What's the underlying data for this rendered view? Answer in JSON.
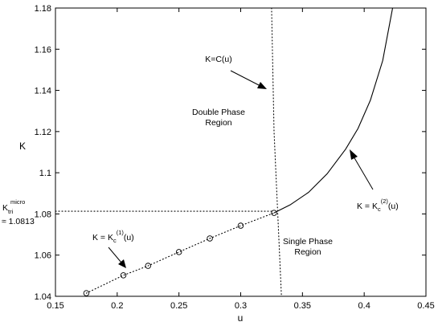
{
  "chart_data": {
    "type": "scatter",
    "xlabel": "u",
    "ylabel": "K",
    "xlim": [
      0.15,
      0.45
    ],
    "ylim": [
      1.04,
      1.18
    ],
    "xticks": [
      0.15,
      0.2,
      0.25,
      0.3,
      0.35,
      0.4,
      0.45
    ],
    "yticks": [
      1.04,
      1.06,
      1.08,
      1.1,
      1.12,
      1.14,
      1.16,
      1.18
    ],
    "xtick_labels": [
      "0.15",
      "0.2",
      "0.25",
      "0.3",
      "0.35",
      "0.4",
      "0.45"
    ],
    "ytick_labels": [
      "1.04",
      "1.06",
      "1.08",
      "1.1",
      "1.12",
      "1.14",
      "1.16",
      "1.18"
    ],
    "grid": false,
    "series": [
      {
        "style": "markers",
        "marker": "open-circle",
        "x": [
          0.175,
          0.205,
          0.225,
          0.25,
          0.275,
          0.3,
          0.327
        ],
        "y": [
          1.0415,
          1.0502,
          1.0548,
          1.0615,
          1.0681,
          1.0743,
          1.0805
        ]
      },
      {
        "style": "dotted",
        "x": [
          0.175,
          0.205,
          0.225,
          0.25,
          0.275,
          0.3,
          0.327
        ],
        "y": [
          1.0415,
          1.0502,
          1.0548,
          1.0615,
          1.0681,
          1.0743,
          1.0805
        ]
      },
      {
        "style": "solid",
        "x": [
          0.327,
          0.34,
          0.355,
          0.37,
          0.385,
          0.395,
          0.405,
          0.415,
          0.423
        ],
        "y": [
          1.0805,
          1.0844,
          1.0905,
          1.0995,
          1.1115,
          1.1215,
          1.1352,
          1.1545,
          1.18
        ]
      },
      {
        "style": "dotted",
        "x": [
          0.325,
          0.327,
          0.33,
          0.333
        ],
        "y": [
          1.18,
          1.12,
          1.08,
          1.04
        ]
      },
      {
        "style": "dotted",
        "x": [
          0.15,
          0.327
        ],
        "y": [
          1.0813,
          1.0813
        ]
      }
    ],
    "annotations": {
      "kc_u": "K=C(u)",
      "double_phase_1": "Double Phase",
      "double_phase_2": "Region",
      "single_phase_1": "Single Phase",
      "single_phase_2": "Region",
      "kc2_main": "K = K",
      "kc2_sub": "c",
      "kc2_sup": "(2)",
      "kc2_tail": "(u)",
      "kc1_main": "K = K",
      "kc1_sub": "c",
      "kc1_sup": "(1)",
      "kc1_tail": "(u)",
      "ktri_main": "K",
      "ktri_sub": "tri",
      "ktri_sup": "micro",
      "ktri_value": "≈ 1.0813"
    }
  }
}
